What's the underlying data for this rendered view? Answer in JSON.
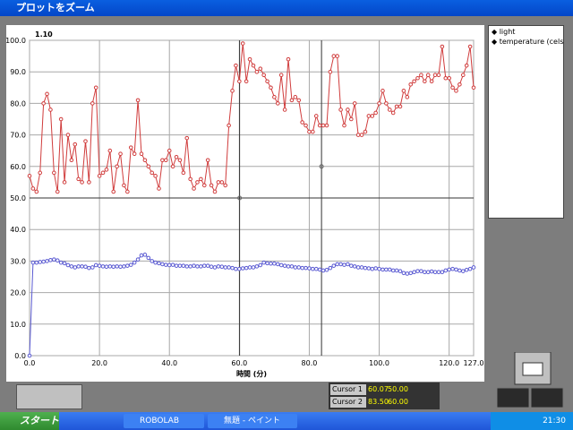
{
  "window": {
    "title": "プロットをズーム"
  },
  "chart_data": {
    "type": "line",
    "annotation": "1.10",
    "xlabel": "時間 (分)",
    "x": [
      0,
      1,
      2,
      3,
      4,
      5,
      6,
      7,
      8,
      9,
      10,
      11,
      12,
      13,
      14,
      15,
      16,
      17,
      18,
      19,
      20,
      21,
      22,
      23,
      24,
      25,
      26,
      27,
      28,
      29,
      30,
      31,
      32,
      33,
      34,
      35,
      36,
      37,
      38,
      39,
      40,
      41,
      42,
      43,
      44,
      45,
      46,
      47,
      48,
      49,
      50,
      51,
      52,
      53,
      54,
      55,
      56,
      57,
      58,
      59,
      60,
      61,
      62,
      63,
      64,
      65,
      66,
      67,
      68,
      69,
      70,
      71,
      72,
      73,
      74,
      75,
      76,
      77,
      78,
      79,
      80,
      81,
      82,
      83,
      84,
      85,
      86,
      87,
      88,
      89,
      90,
      91,
      92,
      93,
      94,
      95,
      96,
      97,
      98,
      99,
      100,
      101,
      102,
      103,
      104,
      105,
      106,
      107,
      108,
      109,
      110,
      111,
      112,
      113,
      114,
      115,
      116,
      117,
      118,
      119,
      120,
      121,
      122,
      123,
      124,
      125,
      126,
      127
    ],
    "series": [
      {
        "name": "light",
        "color": "#d03c3c",
        "values": [
          57,
          53,
          52,
          58,
          80,
          83,
          78,
          58,
          52,
          75,
          55,
          70,
          62,
          67,
          56,
          55,
          68,
          55,
          80,
          85,
          57,
          58,
          59,
          65,
          52,
          60,
          64,
          54,
          52,
          66,
          64,
          81,
          64,
          62,
          60,
          58,
          57,
          53,
          62,
          62,
          65,
          60,
          63,
          62,
          58,
          69,
          56,
          53,
          55,
          56,
          54,
          62,
          54,
          52,
          55,
          55,
          54,
          73,
          84,
          92,
          87,
          99,
          87,
          94,
          92,
          90,
          91,
          89,
          87,
          85,
          82,
          80,
          89,
          78,
          94,
          81,
          82,
          81,
          74,
          73,
          71,
          71,
          76,
          73,
          73,
          73,
          90,
          95,
          95,
          78,
          73,
          78,
          75,
          80,
          70,
          70,
          71,
          76,
          76,
          77,
          80,
          84,
          80,
          78,
          77,
          79,
          79,
          84,
          82,
          86,
          87,
          88,
          89,
          87,
          89,
          87,
          89,
          89,
          98,
          88,
          88,
          85,
          84,
          86,
          89,
          92,
          98,
          85
        ]
      },
      {
        "name": "temperature (celsius",
        "color": "#5a5ad2",
        "values": [
          0,
          29.5,
          29.5,
          29.7,
          29.8,
          30,
          30.3,
          30.5,
          30.2,
          29.5,
          29.3,
          28.7,
          28.3,
          28,
          28.3,
          28.3,
          28.2,
          27.8,
          28,
          28.7,
          28.5,
          28.3,
          28.2,
          28.3,
          28.2,
          28.3,
          28.2,
          28.3,
          28.5,
          28.8,
          29.5,
          30.5,
          31.8,
          32,
          31,
          30,
          29.5,
          29.3,
          29,
          28.8,
          28.7,
          28.8,
          28.5,
          28.5,
          28.5,
          28.3,
          28.3,
          28.5,
          28.3,
          28.3,
          28.5,
          28.5,
          28.2,
          28,
          28.3,
          28.2,
          28,
          28,
          27.8,
          27.5,
          27.5,
          27.7,
          27.8,
          28,
          28,
          28.3,
          28.7,
          29.5,
          29.3,
          29.2,
          29.2,
          29,
          28.7,
          28.5,
          28.3,
          28.3,
          28,
          28,
          27.8,
          27.8,
          27.7,
          27.5,
          27.5,
          27.3,
          27,
          27.2,
          27.8,
          28.5,
          29,
          29,
          28.8,
          29,
          28.5,
          28.3,
          28,
          28,
          27.8,
          27.7,
          27.5,
          27.7,
          27.5,
          27.3,
          27.3,
          27.3,
          27,
          27,
          26.8,
          26.2,
          26,
          26.2,
          26.5,
          26.8,
          26.8,
          26.5,
          26.5,
          26.7,
          26.5,
          26.5,
          26.5,
          27,
          27.3,
          27.5,
          27.3,
          27,
          26.8,
          27.2,
          27.5,
          28
        ]
      }
    ],
    "xlim": [
      0,
      127
    ],
    "ylim": [
      0,
      100
    ],
    "xticks": [
      {
        "value": 0,
        "label": "0.0"
      },
      {
        "value": 20,
        "label": "20.0"
      },
      {
        "value": 40,
        "label": "40.0"
      },
      {
        "value": 60,
        "label": "60.0"
      },
      {
        "value": 80,
        "label": "80.0"
      },
      {
        "value": 100,
        "label": "100.0"
      },
      {
        "value": 120,
        "label": "120.0"
      },
      {
        "value": 127,
        "label": "127.0"
      }
    ],
    "yticks": [
      {
        "value": 0,
        "label": "0.0"
      },
      {
        "value": 10,
        "label": "10.0"
      },
      {
        "value": 20,
        "label": "20.0"
      },
      {
        "value": 30,
        "label": "30.0"
      },
      {
        "value": 40,
        "label": "40.0"
      },
      {
        "value": 50,
        "label": "50.0"
      },
      {
        "value": 60,
        "label": "60.0"
      },
      {
        "value": 70,
        "label": "70.0"
      },
      {
        "value": 80,
        "label": "80.0"
      },
      {
        "value": 90,
        "label": "90.0"
      },
      {
        "value": 100,
        "label": "100.0"
      }
    ],
    "grid": true,
    "cursors": [
      {
        "name": "Cursor 1",
        "x": {
          "value": 60.07,
          "label": "60.07"
        },
        "y": {
          "value": 50,
          "label": "50.00"
        }
      },
      {
        "name": "Cursor 2",
        "x": {
          "value": 83.5,
          "label": "83.50"
        },
        "y": {
          "value": 60,
          "label": "60.00"
        }
      }
    ]
  },
  "taskbar": {
    "start": "スタート",
    "tasks": [
      "ROBOLAB",
      "無題 - ペイント"
    ],
    "clock": "21:30"
  }
}
